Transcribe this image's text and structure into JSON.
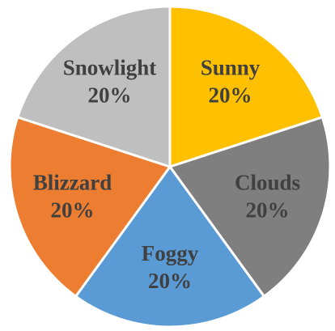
{
  "chart_data": {
    "type": "pie",
    "categories": [
      "Sunny",
      "Clouds",
      "Foggy",
      "Blizzard",
      "Snowlight"
    ],
    "values": [
      20,
      20,
      20,
      20,
      20
    ],
    "value_labels": [
      "20%",
      "20%",
      "20%",
      "20%",
      "20%"
    ],
    "colors": [
      "#FFC000",
      "#7F7F7F",
      "#5B9BD5",
      "#ED7D31",
      "#BFBFBF"
    ]
  }
}
